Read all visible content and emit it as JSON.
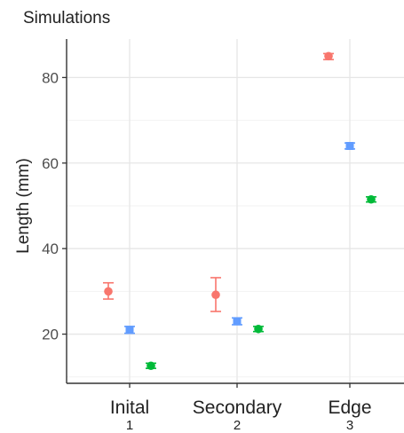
{
  "chart_data": {
    "type": "scatter",
    "title": "Simulations",
    "ylabel": "Length (mm)",
    "xlabel": "",
    "categories": [
      {
        "label": "Inital",
        "sublabel": "1"
      },
      {
        "label": "Secondary",
        "sublabel": "2"
      },
      {
        "label": "Edge",
        "sublabel": "3"
      }
    ],
    "y_ticks": [
      20,
      40,
      60,
      80
    ],
    "ylim": [
      8.5,
      89
    ],
    "grid": true,
    "legend": "none",
    "series": [
      {
        "color": "#F8766D",
        "shape": "circle",
        "values": [
          30.0,
          29.2,
          85.0
        ],
        "error_low": [
          28.2,
          25.3,
          84.2
        ],
        "error_high": [
          32.0,
          33.2,
          85.6
        ]
      },
      {
        "color": "#619CFF",
        "shape": "square",
        "values": [
          21.0,
          23.0,
          64.0
        ],
        "error_low": [
          20.2,
          22.2,
          63.3
        ],
        "error_high": [
          21.8,
          23.8,
          64.7
        ]
      },
      {
        "color": "#00BA38",
        "shape": "circle",
        "values": [
          12.6,
          21.2,
          51.5
        ],
        "error_low": [
          12.0,
          20.6,
          50.9
        ],
        "error_high": [
          13.2,
          21.8,
          52.1
        ]
      }
    ]
  }
}
